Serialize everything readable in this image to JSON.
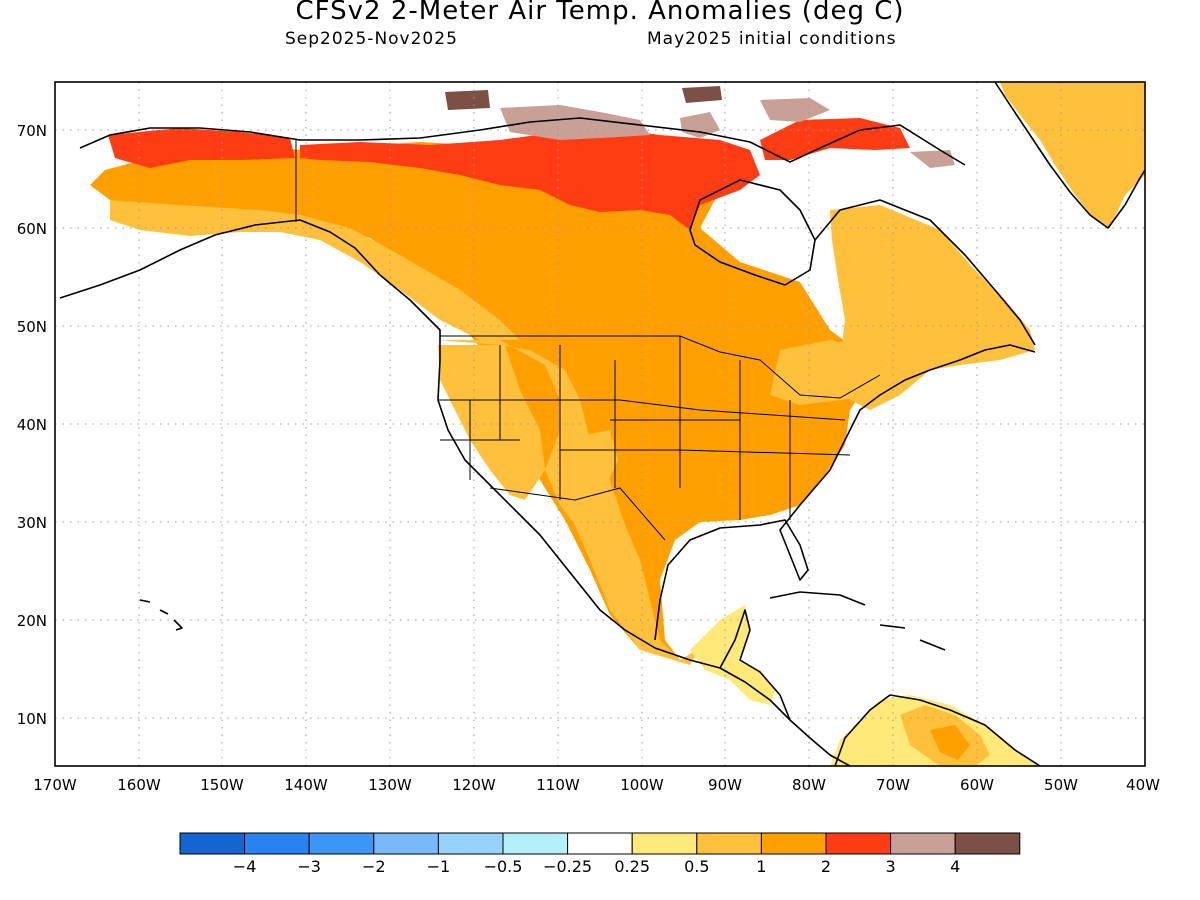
{
  "title": "CFSv2 2-Meter Air Temp. Anomalies (deg C)",
  "period": "Sep2025-Nov2025",
  "init": "May2025 initial conditions",
  "lat_ticks": [
    "10N",
    "20N",
    "30N",
    "40N",
    "50N",
    "60N",
    "70N"
  ],
  "lon_ticks": [
    "170W",
    "160W",
    "150W",
    "140W",
    "130W",
    "120W",
    "110W",
    "100W",
    "90W",
    "80W",
    "70W",
    "60W",
    "50W",
    "40W"
  ],
  "map": {
    "lon_range": [
      -170,
      -40
    ],
    "lat_range": [
      5,
      75
    ],
    "grid": "dotted"
  },
  "legend": {
    "colors": [
      "#1464d2",
      "#2882f0",
      "#3c96f5",
      "#78b9fa",
      "#96d2fa",
      "#b4f0fa",
      "#ffffff",
      "#ffe978",
      "#ffc03c",
      "#ffa000",
      "#ff3c14",
      "#c8a096",
      "#7d5046"
    ],
    "labels": [
      "-4",
      "-3",
      "-2",
      "-1",
      "-0.5",
      "-0.25",
      "0.25",
      "0.5",
      "1",
      "2",
      "3",
      "4"
    ]
  }
}
